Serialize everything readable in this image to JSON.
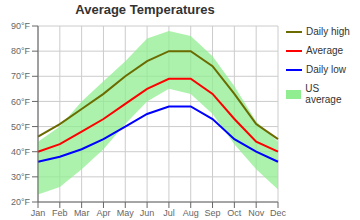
{
  "chart_data": {
    "type": "line",
    "title": "Average Temperatures",
    "categories": [
      "Jan",
      "Feb",
      "Mar",
      "Apr",
      "May",
      "Jun",
      "Jul",
      "Aug",
      "Sep",
      "Oct",
      "Nov",
      "Dec"
    ],
    "series": [
      {
        "name": "Daily high",
        "type": "line",
        "color": "#6b6b00",
        "values": [
          46,
          51,
          57,
          63,
          70,
          76,
          80,
          80,
          74,
          63,
          51,
          45
        ]
      },
      {
        "name": "Average",
        "type": "line",
        "color": "#ff0000",
        "values": [
          40,
          43,
          48,
          53,
          59,
          65,
          69,
          69,
          63,
          53,
          44,
          40
        ]
      },
      {
        "name": "Daily low",
        "type": "line",
        "color": "#0000ff",
        "values": [
          36,
          38,
          41,
          45,
          50,
          55,
          58,
          58,
          53,
          45,
          40,
          36
        ]
      },
      {
        "name": "US average",
        "type": "area",
        "color": "#90ee90",
        "values": [
          [
            23,
            44
          ],
          [
            26,
            50
          ],
          [
            33,
            60
          ],
          [
            41,
            68
          ],
          [
            51,
            76
          ],
          [
            60,
            85
          ],
          [
            65,
            88
          ],
          [
            63,
            86
          ],
          [
            55,
            78
          ],
          [
            43,
            66
          ],
          [
            33,
            52
          ],
          [
            25,
            44
          ]
        ]
      }
    ],
    "ylim": [
      20,
      90
    ],
    "yticks": [
      {
        "value": 20,
        "label": "20°F"
      },
      {
        "value": 30,
        "label": "30°F"
      },
      {
        "value": 40,
        "label": "40°F"
      },
      {
        "value": 50,
        "label": "50°F"
      },
      {
        "value": 60,
        "label": "60°F"
      },
      {
        "value": 70,
        "label": "70°F"
      },
      {
        "value": 80,
        "label": "80°F"
      },
      {
        "value": 90,
        "label": "90°F"
      }
    ],
    "grid": true,
    "legend": "right"
  }
}
